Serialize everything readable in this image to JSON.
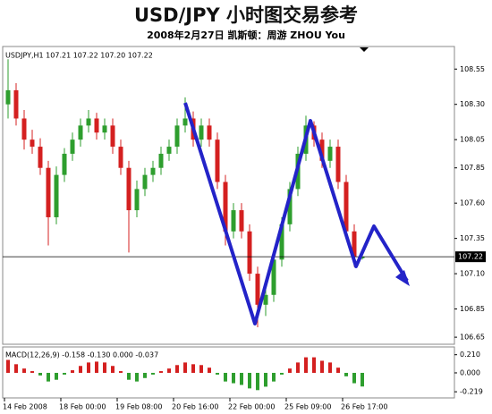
{
  "chart_data": [
    {
      "type": "candlestick",
      "title": "USD/JPY 小时图交易参考",
      "subtitle": "2008年2月27日  凯斯顿：周游 ZHOU You",
      "label": "USDJPY,H1  107.21 107.22 107.20 107.22",
      "up_color": "#2e9e2e",
      "down_color": "#d42020",
      "open": [
        108.3,
        108.4,
        108.2,
        108.05,
        108.0,
        107.85,
        107.5,
        107.8,
        107.95,
        108.05,
        108.15,
        108.2,
        108.1,
        108.15,
        108.0,
        107.85,
        107.55,
        107.7,
        107.8,
        107.85,
        107.95,
        108.0,
        108.15,
        108.2,
        108.05,
        108.15,
        108.05,
        107.75,
        107.4,
        107.55,
        107.4,
        107.1,
        106.88,
        106.95,
        107.2,
        107.45,
        107.7,
        107.95,
        108.15,
        108.05,
        107.9,
        108.0,
        107.75,
        107.4,
        107.21
      ],
      "high": [
        108.62,
        108.45,
        108.26,
        108.12,
        108.06,
        107.9,
        107.86,
        107.99,
        108.1,
        108.2,
        108.26,
        108.24,
        108.2,
        108.2,
        108.05,
        107.9,
        107.76,
        107.85,
        107.9,
        108.0,
        108.05,
        108.2,
        108.35,
        108.25,
        108.2,
        108.2,
        108.1,
        107.8,
        107.6,
        107.6,
        107.45,
        107.15,
        107.0,
        107.25,
        107.5,
        107.75,
        108.0,
        108.22,
        108.18,
        108.1,
        108.05,
        108.05,
        107.8,
        107.45,
        107.22
      ],
      "low": [
        108.2,
        108.15,
        107.98,
        107.95,
        107.8,
        107.3,
        107.45,
        107.75,
        107.9,
        108.0,
        108.1,
        108.05,
        108.05,
        107.95,
        107.8,
        107.25,
        107.5,
        107.65,
        107.75,
        107.8,
        107.9,
        107.95,
        108.1,
        108.0,
        108.0,
        108.0,
        107.7,
        107.3,
        107.35,
        107.35,
        107.05,
        106.72,
        106.8,
        106.9,
        107.15,
        107.4,
        107.65,
        107.9,
        108.0,
        107.85,
        107.85,
        107.7,
        107.35,
        107.15,
        107.2
      ],
      "close": [
        108.4,
        108.2,
        108.05,
        108.0,
        107.85,
        107.5,
        107.8,
        107.95,
        108.05,
        108.15,
        108.2,
        108.1,
        108.15,
        108.0,
        107.85,
        107.55,
        107.7,
        107.8,
        107.85,
        107.95,
        108.0,
        108.15,
        108.2,
        108.05,
        108.15,
        108.05,
        107.75,
        107.4,
        107.55,
        107.4,
        107.1,
        106.88,
        106.95,
        107.2,
        107.45,
        107.7,
        107.95,
        108.15,
        108.05,
        107.9,
        108.0,
        107.75,
        107.4,
        107.22,
        107.22
      ],
      "last_price": 107.22,
      "ylim": [
        106.6,
        108.71
      ],
      "yticks": [
        108.55,
        {
          "value": 108.3,
          "label": "108.30"
        },
        108.05,
        107.85,
        {
          "value": 107.6,
          "label": "107.60"
        },
        107.35,
        {
          "value": 107.1,
          "label": "107.10"
        },
        106.85,
        106.65
      ],
      "xticks": [
        {
          "value": 0,
          "label": "14 Feb 2008"
        },
        {
          "value": 7,
          "label": "18 Feb 00:00"
        },
        {
          "value": 14,
          "label": "19 Feb 08:00"
        },
        {
          "value": 21,
          "label": "20 Feb 16:00"
        },
        {
          "value": 28,
          "label": "22 Feb 00:00"
        },
        {
          "value": 35,
          "label": "25 Feb 09:00"
        },
        {
          "value": 42,
          "label": "26 Feb 17:00"
        }
      ]
    },
    {
      "type": "bar",
      "title": "MACD(12,26,9) -0.158 -0.130 0.000 -0.037",
      "up_color": "#d42020",
      "down_color": "#2e9e2e",
      "values": [
        0.15,
        0.1,
        0.05,
        0.02,
        -0.03,
        -0.1,
        -0.08,
        -0.02,
        0.03,
        0.08,
        0.12,
        0.13,
        0.12,
        0.08,
        0.02,
        -0.08,
        -0.1,
        -0.06,
        -0.02,
        0.02,
        0.05,
        0.09,
        0.12,
        0.1,
        0.09,
        0.06,
        -0.02,
        -0.1,
        -0.12,
        -0.14,
        -0.18,
        -0.2,
        -0.16,
        -0.1,
        -0.02,
        0.05,
        0.12,
        0.18,
        0.18,
        0.14,
        0.12,
        0.06,
        -0.04,
        -0.12,
        -0.158
      ],
      "ylim": [
        -0.29,
        0.3
      ],
      "yticks": [
        {
          "value": 0.21,
          "label": "0.210"
        },
        {
          "value": 0,
          "label": "0.000"
        },
        {
          "value": -0.219,
          "label": "-0.219"
        }
      ]
    }
  ]
}
